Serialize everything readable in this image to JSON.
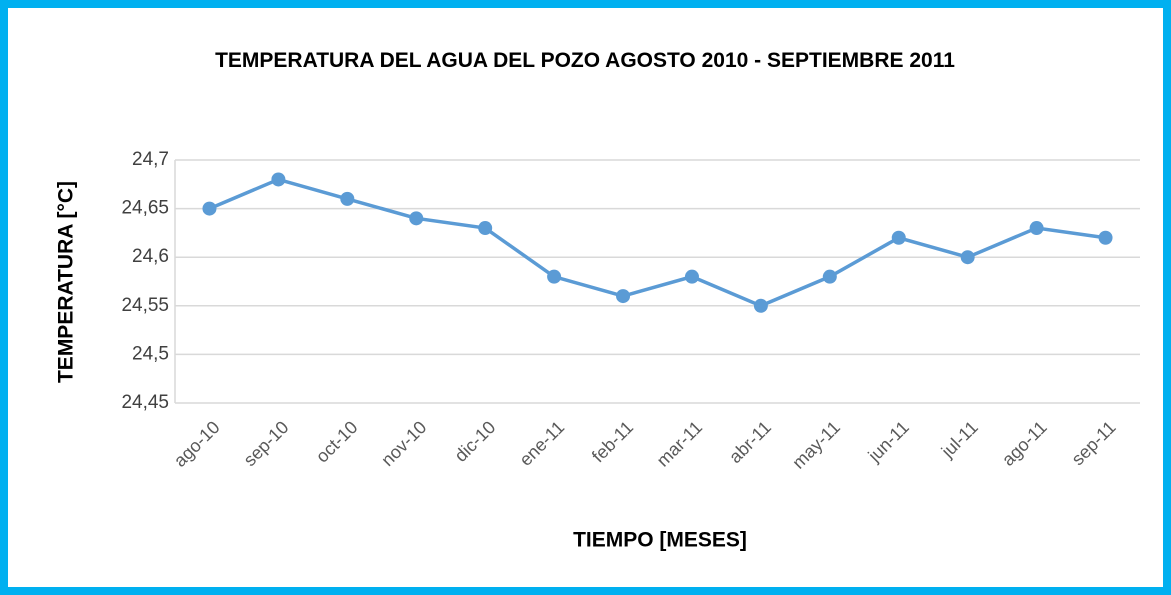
{
  "chart_data": {
    "type": "line",
    "title": "TEMPERATURA DEL AGUA DEL POZO  AGOSTO 2010 - SEPTIEMBRE 2011",
    "y_label": "TEMPERATURA [°C]",
    "x_label": "TIEMPO [MESES]",
    "categories": [
      "ago-10",
      "sep-10",
      "oct-10",
      "nov-10",
      "dic-10",
      "ene-11",
      "feb-11",
      "mar-11",
      "abr-11",
      "may-11",
      "jun-11",
      "jul-11",
      "ago-11",
      "sep-11"
    ],
    "values": [
      24.65,
      24.68,
      24.66,
      24.64,
      24.63,
      24.58,
      24.56,
      24.58,
      24.55,
      24.58,
      24.62,
      24.6,
      24.63,
      24.62
    ],
    "color": "#5b9bd5",
    "ylim": [
      24.45,
      24.7
    ],
    "yticks": [
      {
        "value": 24.45,
        "label": "24,45"
      },
      {
        "value": 24.5,
        "label": "24,5"
      },
      {
        "value": 24.55,
        "label": "24,55"
      },
      {
        "value": 24.6,
        "label": "24,6"
      },
      {
        "value": 24.65,
        "label": "24,65"
      },
      {
        "value": 24.7,
        "label": "24,7"
      }
    ],
    "grid": true
  }
}
